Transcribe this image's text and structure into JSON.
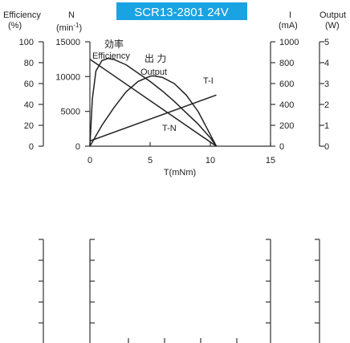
{
  "chart_data": [
    {
      "type": "line",
      "title": "SCR13-2801  24V",
      "title_bg_color": "#1aa3e3",
      "xlabel": "T(mNm)",
      "xlim": [
        0,
        15
      ],
      "x_ticks": [
        "0",
        "5",
        "10",
        "15"
      ],
      "axes": {
        "efficiency": {
          "label": "Efficiency",
          "unit": "(%)",
          "lim": [
            0,
            100
          ],
          "ticks": [
            "0",
            "20",
            "40",
            "60",
            "80",
            "100"
          ]
        },
        "speed": {
          "label": "N",
          "unit": "(min⁻¹)",
          "unit_base": "(min",
          "unit_exp": "-1",
          "unit_close": ")",
          "lim": [
            0,
            15000
          ],
          "ticks": [
            "0",
            "5000",
            "10000",
            "15000"
          ]
        },
        "current": {
          "label": "I",
          "unit": "(mA)",
          "lim": [
            0,
            1000
          ],
          "ticks": [
            "0",
            "200",
            "400",
            "600",
            "800",
            "1000"
          ]
        },
        "output": {
          "label": "Output",
          "unit": "(W)",
          "lim": [
            0,
            5
          ],
          "ticks": [
            "0",
            "1",
            "2",
            "3",
            "4",
            "5"
          ]
        }
      },
      "series": [
        {
          "name": "T-N",
          "axis": "speed",
          "x": [
            0,
            10.5
          ],
          "y": [
            12500,
            0
          ]
        },
        {
          "name": "T-I",
          "axis": "current",
          "x": [
            0,
            10.5
          ],
          "y": [
            50,
            490
          ]
        },
        {
          "name": "Output",
          "axis": "output",
          "x": [
            0,
            1,
            2,
            3,
            4,
            5,
            5.25,
            6,
            7,
            8,
            9,
            10,
            10.5
          ],
          "y": [
            0,
            1.0,
            1.85,
            2.6,
            3.1,
            3.35,
            3.37,
            3.3,
            3.0,
            2.45,
            1.65,
            0.55,
            0
          ]
        },
        {
          "name": "Efficiency",
          "name_cjk": "効率",
          "axis": "efficiency",
          "x": [
            0,
            0.2,
            0.5,
            1.0,
            1.5,
            2.0,
            3,
            4,
            5,
            6,
            7,
            8,
            9,
            10,
            10.5
          ],
          "y": [
            0,
            45,
            72,
            82,
            84,
            83,
            78,
            70,
            62,
            53,
            43,
            32,
            21,
            8,
            0
          ]
        }
      ],
      "annotations": [
        {
          "text": "効率",
          "series": "Efficiency"
        },
        {
          "text": "Efficiency",
          "series": "Efficiency"
        },
        {
          "text": "出 力",
          "series": "Output"
        },
        {
          "text": "Output",
          "series": "Output"
        },
        {
          "text": "T-I",
          "series": "T-I"
        },
        {
          "text": "T-N",
          "series": "T-N"
        }
      ]
    },
    {
      "type": "line",
      "title": "",
      "partial": true,
      "series": []
    }
  ]
}
